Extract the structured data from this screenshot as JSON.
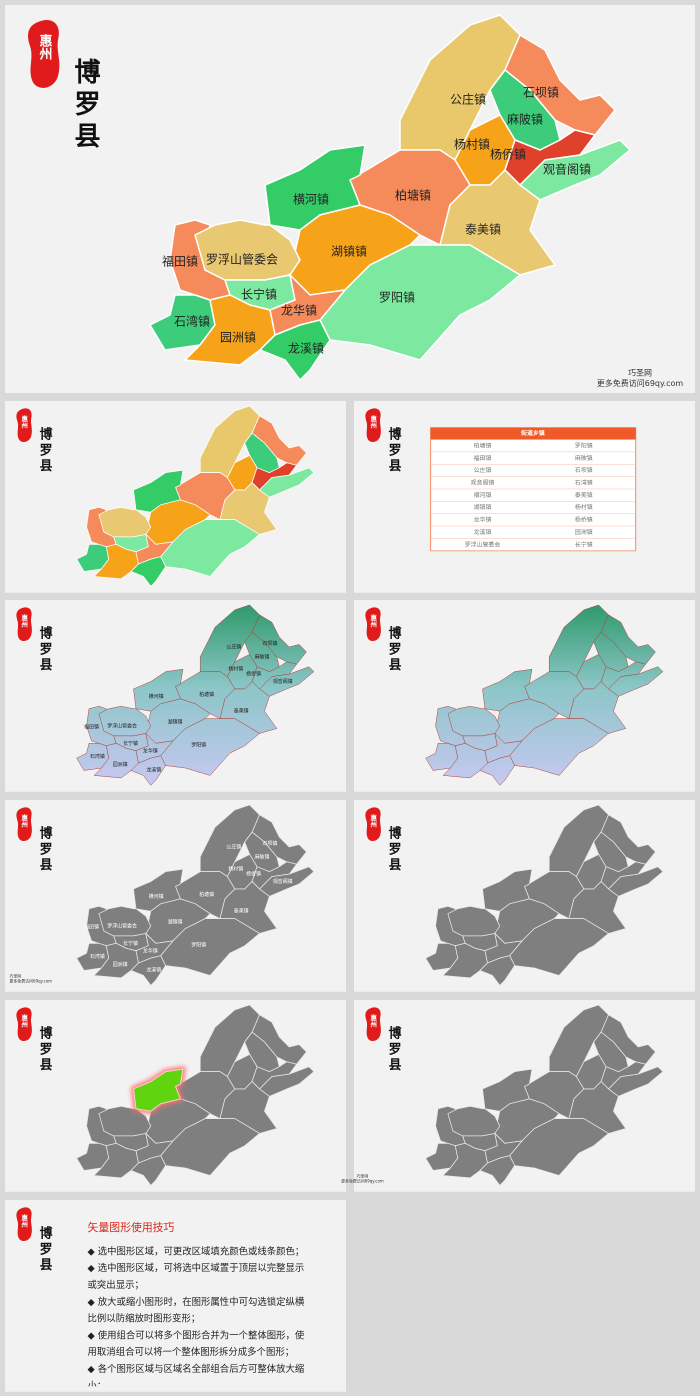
{
  "seal": "惠州",
  "title": "博罗县",
  "towns": [
    "公庄镇",
    "石坝镇",
    "麻陂镇",
    "杨村镇",
    "杨侨镇",
    "观音阁镇",
    "柏塘镇",
    "泰美镇",
    "横河镇",
    "湖镇镇",
    "罗阳镇",
    "福田镇",
    "罗浮山管委会",
    "长宁镇",
    "石湾镇",
    "龙华镇",
    "园洲镇",
    "龙溪镇"
  ],
  "watermark": {
    "line1": "巧圣网",
    "line2": "更多免费访问69qy.com"
  },
  "table": {
    "header": "街道乡镇",
    "rows": [
      [
        "柏塘镇",
        "罗阳镇"
      ],
      [
        "福田镇",
        "麻陂镇"
      ],
      [
        "公庄镇",
        "石坝镇"
      ],
      [
        "观音阁镇",
        "石湾镇"
      ],
      [
        "横河镇",
        "泰美镇"
      ],
      [
        "湖镇镇",
        "杨村镇"
      ],
      [
        "龙华镇",
        "杨侨镇"
      ],
      [
        "龙溪镇",
        "园洲镇"
      ],
      [
        "罗浮山管委会",
        "长宁镇"
      ]
    ]
  },
  "tips": {
    "title": "矢量图形使用技巧",
    "items": [
      "◆ 选中图形区域，可更改区域填充颜色或线条颜色；",
      "◆ 选中图形区域，可将选中区域置于顶层以完整显示或突出显示；",
      "◆ 放大或缩小图形时，在图形属性中可勾选锁定纵横比例以防缩放时图形变形；",
      "◆ 使用组合可以将多个图形合并为一个整体图形，使用取消组合可以将一个整体图形拆分成多个图形；",
      "◆ 各个图形区域与区域名全部组合后方可整体放大缩小；"
    ]
  }
}
